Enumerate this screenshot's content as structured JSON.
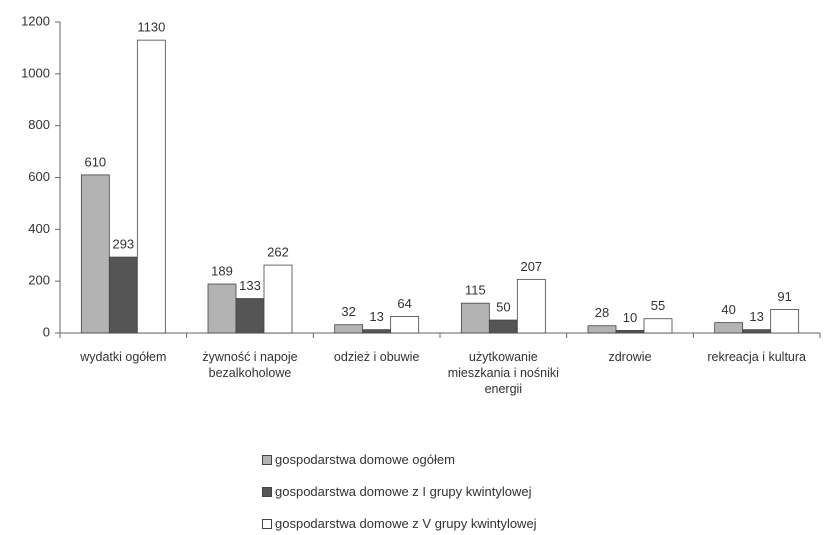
{
  "chart_data": {
    "type": "bar",
    "categories": [
      "wydatki ogółem",
      "żywność i napoje bezalkoholowe",
      "odzież i obuwie",
      "użytkowanie mieszkania i nośniki energii",
      "zdrowie",
      "rekreacja i kultura"
    ],
    "series": [
      {
        "name": "gospodarstwa domowe ogółem",
        "color": "#b3b3b3",
        "values": [
          610,
          189,
          32,
          115,
          28,
          40
        ]
      },
      {
        "name": "gospodarstwa domowe z I grupy kwintylowej",
        "color": "#555555",
        "values": [
          293,
          133,
          13,
          50,
          10,
          13
        ]
      },
      {
        "name": "gospodarstwa domowe z V grupy kwintylowej",
        "color": "#ffffff",
        "values": [
          1130,
          262,
          64,
          207,
          55,
          91
        ]
      }
    ],
    "ylim": [
      0,
      1200
    ],
    "yticks": [
      0,
      200,
      400,
      600,
      800,
      1000,
      1200
    ],
    "grid": false,
    "legend": "bottom"
  }
}
